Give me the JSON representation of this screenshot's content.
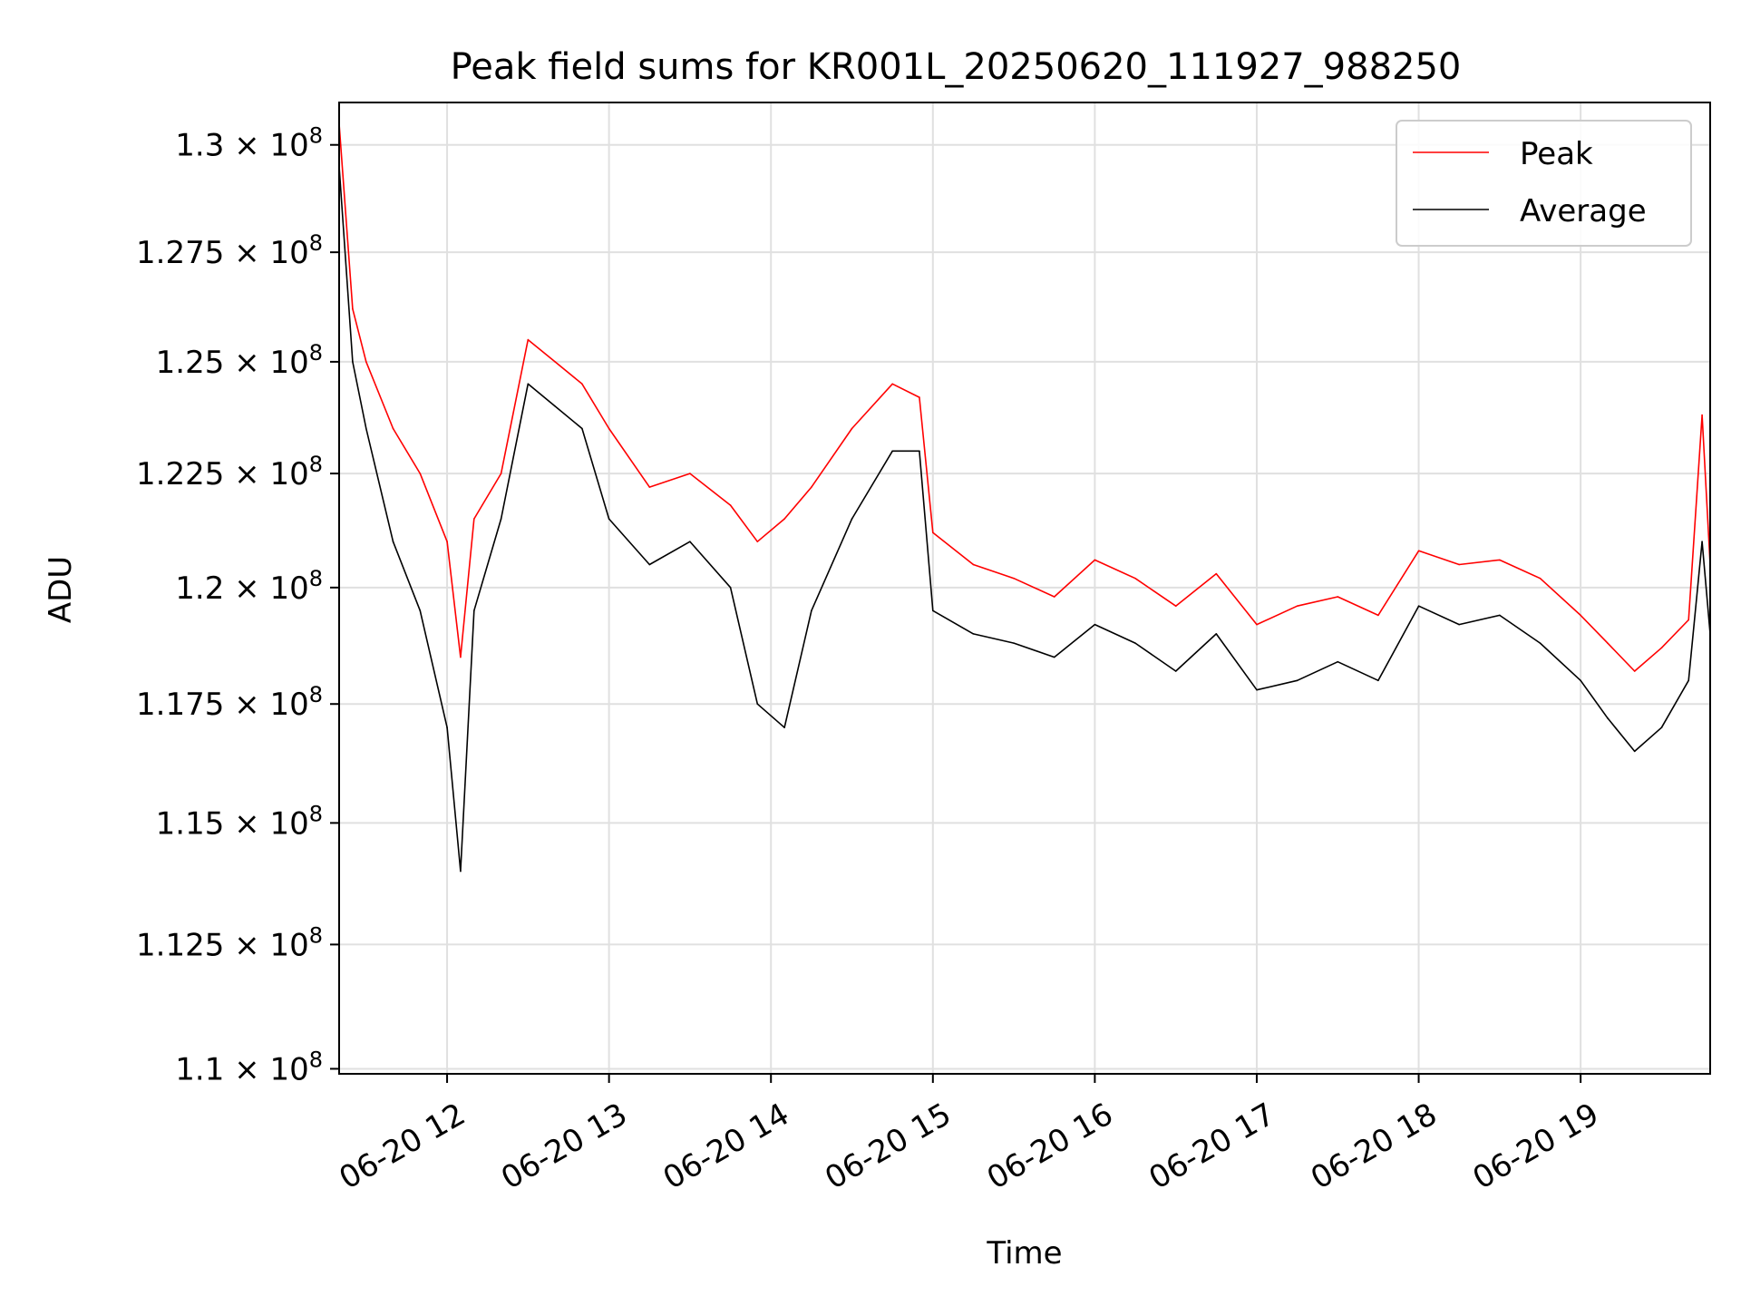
{
  "chart_data": {
    "type": "line",
    "title": "Peak field sums for KR001L_20250620_111927_988250",
    "xlabel": "Time",
    "ylabel": "ADU",
    "yscale": "log",
    "grid": true,
    "legend_position": "top-right",
    "xlim": [
      "2025-06-20T11:20",
      "2025-06-20T19:48"
    ],
    "ylim": [
      109900000,
      131000000
    ],
    "x_ticks": [
      {
        "value": "2025-06-20T12:00",
        "label": "06-20 12"
      },
      {
        "value": "2025-06-20T13:00",
        "label": "06-20 13"
      },
      {
        "value": "2025-06-20T14:00",
        "label": "06-20 14"
      },
      {
        "value": "2025-06-20T15:00",
        "label": "06-20 15"
      },
      {
        "value": "2025-06-20T16:00",
        "label": "06-20 16"
      },
      {
        "value": "2025-06-20T17:00",
        "label": "06-20 17"
      },
      {
        "value": "2025-06-20T18:00",
        "label": "06-20 18"
      },
      {
        "value": "2025-06-20T19:00",
        "label": "06-20 19"
      }
    ],
    "y_ticks": [
      {
        "value": 110000000,
        "mantissa": "1.1"
      },
      {
        "value": 112500000,
        "mantissa": "1.125"
      },
      {
        "value": 115000000,
        "mantissa": "1.15"
      },
      {
        "value": 117500000,
        "mantissa": "1.175"
      },
      {
        "value": 120000000,
        "mantissa": "1.2"
      },
      {
        "value": 122500000,
        "mantissa": "1.225"
      },
      {
        "value": 125000000,
        "mantissa": "1.25"
      },
      {
        "value": 127500000,
        "mantissa": "1.275"
      },
      {
        "value": 130000000,
        "mantissa": "1.3"
      }
    ],
    "y_tick_times": "×",
    "y_tick_base": "10",
    "y_tick_exponent": "8",
    "series": [
      {
        "name": "Peak",
        "color": "#ff0000",
        "x": [
          "2025-06-20T11:20",
          "2025-06-20T11:25",
          "2025-06-20T11:30",
          "2025-06-20T11:40",
          "2025-06-20T11:50",
          "2025-06-20T12:00",
          "2025-06-20T12:05",
          "2025-06-20T12:10",
          "2025-06-20T12:20",
          "2025-06-20T12:30",
          "2025-06-20T12:40",
          "2025-06-20T12:50",
          "2025-06-20T13:00",
          "2025-06-20T13:15",
          "2025-06-20T13:30",
          "2025-06-20T13:45",
          "2025-06-20T13:55",
          "2025-06-20T14:05",
          "2025-06-20T14:15",
          "2025-06-20T14:30",
          "2025-06-20T14:45",
          "2025-06-20T14:55",
          "2025-06-20T15:00",
          "2025-06-20T15:15",
          "2025-06-20T15:30",
          "2025-06-20T15:45",
          "2025-06-20T16:00",
          "2025-06-20T16:15",
          "2025-06-20T16:30",
          "2025-06-20T16:45",
          "2025-06-20T17:00",
          "2025-06-20T17:15",
          "2025-06-20T17:30",
          "2025-06-20T17:45",
          "2025-06-20T18:00",
          "2025-06-20T18:15",
          "2025-06-20T18:30",
          "2025-06-20T18:45",
          "2025-06-20T19:00",
          "2025-06-20T19:10",
          "2025-06-20T19:20",
          "2025-06-20T19:30",
          "2025-06-20T19:40",
          "2025-06-20T19:45",
          "2025-06-20T19:48"
        ],
        "y": [
          130500000,
          126200000,
          125000000,
          123500000,
          122500000,
          121000000,
          118500000,
          121500000,
          122500000,
          125500000,
          125000000,
          124500000,
          123500000,
          122200000,
          122500000,
          121800000,
          121000000,
          121500000,
          122200000,
          123500000,
          124500000,
          124200000,
          121200000,
          120500000,
          120200000,
          119800000,
          120600000,
          120200000,
          119600000,
          120300000,
          119200000,
          119600000,
          119800000,
          119400000,
          120800000,
          120500000,
          120600000,
          120200000,
          119400000,
          118800000,
          118200000,
          118700000,
          119300000,
          123800000,
          120500000
        ]
      },
      {
        "name": "Average",
        "color": "#000000",
        "x": [
          "2025-06-20T11:20",
          "2025-06-20T11:25",
          "2025-06-20T11:30",
          "2025-06-20T11:40",
          "2025-06-20T11:50",
          "2025-06-20T12:00",
          "2025-06-20T12:05",
          "2025-06-20T12:10",
          "2025-06-20T12:20",
          "2025-06-20T12:30",
          "2025-06-20T12:40",
          "2025-06-20T12:50",
          "2025-06-20T13:00",
          "2025-06-20T13:15",
          "2025-06-20T13:30",
          "2025-06-20T13:45",
          "2025-06-20T13:55",
          "2025-06-20T14:05",
          "2025-06-20T14:15",
          "2025-06-20T14:30",
          "2025-06-20T14:45",
          "2025-06-20T14:55",
          "2025-06-20T15:00",
          "2025-06-20T15:15",
          "2025-06-20T15:30",
          "2025-06-20T15:45",
          "2025-06-20T16:00",
          "2025-06-20T16:15",
          "2025-06-20T16:30",
          "2025-06-20T16:45",
          "2025-06-20T17:00",
          "2025-06-20T17:15",
          "2025-06-20T17:30",
          "2025-06-20T17:45",
          "2025-06-20T18:00",
          "2025-06-20T18:15",
          "2025-06-20T18:30",
          "2025-06-20T18:45",
          "2025-06-20T19:00",
          "2025-06-20T19:10",
          "2025-06-20T19:20",
          "2025-06-20T19:30",
          "2025-06-20T19:40",
          "2025-06-20T19:45",
          "2025-06-20T19:48"
        ],
        "y": [
          129500000,
          125000000,
          123500000,
          121000000,
          119500000,
          117000000,
          114000000,
          119500000,
          121500000,
          124500000,
          124000000,
          123500000,
          121500000,
          120500000,
          121000000,
          120000000,
          117500000,
          117000000,
          119500000,
          121500000,
          123000000,
          123000000,
          119500000,
          119000000,
          118800000,
          118500000,
          119200000,
          118800000,
          118200000,
          119000000,
          117800000,
          118000000,
          118400000,
          118000000,
          119600000,
          119200000,
          119400000,
          118800000,
          118000000,
          117200000,
          116500000,
          117000000,
          118000000,
          121000000,
          119000000
        ]
      }
    ]
  }
}
